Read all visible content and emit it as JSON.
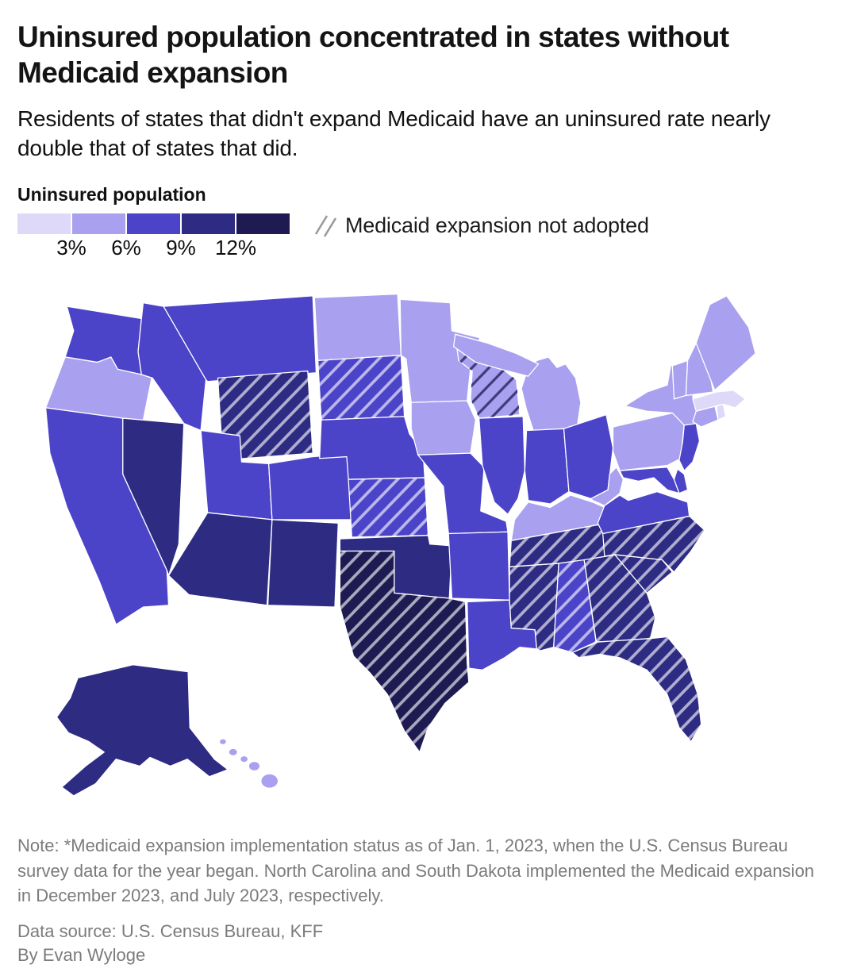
{
  "header": {
    "title": "Uninsured population concentrated in states without Medicaid expansion",
    "subtitle": "Residents of states that didn't expand Medicaid have an uninsured rate nearly double that of states that did."
  },
  "footer": {
    "note": "Note: *Medicaid expansion implementation status as of Jan. 1, 2023, when the U.S. Census Bureau survey data for the year began. North Carolina and South Dakota implemented the Medicaid expansion in December 2023, and July 2023, respectively.",
    "source": "Data source: U.S. Census Bureau, KFF",
    "byline": "By Evan Wyloge"
  },
  "chart_data": {
    "type": "choropleth_map",
    "region": "United States",
    "title": "Uninsured population",
    "legend": {
      "title": "Uninsured population",
      "tick_labels": [
        "3%",
        "6%",
        "9%",
        "12%"
      ],
      "bucket_ranges": [
        "<3%",
        "3-6%",
        "6-9%",
        "9-12%",
        ">12%"
      ],
      "bucket_colors": [
        "#ded9f8",
        "#a9a0ef",
        "#4b43c8",
        "#2d2b82",
        "#1e1b52"
      ],
      "hatch_label": "Medicaid expansion not adopted",
      "hatch_line_light": "rgba(255,255,255,0.62)",
      "hatch_line_dark": "#3f3b7d",
      "border_color": "#ffffff"
    },
    "states": [
      {
        "abbr": "WA",
        "name": "Washington",
        "bucket": 3,
        "range": "6-9%",
        "expansion_not_adopted": false
      },
      {
        "abbr": "OR",
        "name": "Oregon",
        "bucket": 2,
        "range": "3-6%",
        "expansion_not_adopted": false
      },
      {
        "abbr": "CA",
        "name": "California",
        "bucket": 3,
        "range": "6-9%",
        "expansion_not_adopted": false
      },
      {
        "abbr": "NV",
        "name": "Nevada",
        "bucket": 4,
        "range": "9-12%",
        "expansion_not_adopted": false
      },
      {
        "abbr": "ID",
        "name": "Idaho",
        "bucket": 3,
        "range": "6-9%",
        "expansion_not_adopted": false
      },
      {
        "abbr": "MT",
        "name": "Montana",
        "bucket": 3,
        "range": "6-9%",
        "expansion_not_adopted": false
      },
      {
        "abbr": "WY",
        "name": "Wyoming",
        "bucket": 4,
        "range": "9-12%",
        "expansion_not_adopted": true
      },
      {
        "abbr": "UT",
        "name": "Utah",
        "bucket": 3,
        "range": "6-9%",
        "expansion_not_adopted": false
      },
      {
        "abbr": "CO",
        "name": "Colorado",
        "bucket": 3,
        "range": "6-9%",
        "expansion_not_adopted": false
      },
      {
        "abbr": "AZ",
        "name": "Arizona",
        "bucket": 4,
        "range": "9-12%",
        "expansion_not_adopted": false
      },
      {
        "abbr": "NM",
        "name": "New Mexico",
        "bucket": 4,
        "range": "9-12%",
        "expansion_not_adopted": false
      },
      {
        "abbr": "ND",
        "name": "North Dakota",
        "bucket": 2,
        "range": "3-6%",
        "expansion_not_adopted": false
      },
      {
        "abbr": "SD",
        "name": "South Dakota",
        "bucket": 3,
        "range": "6-9%",
        "expansion_not_adopted": true
      },
      {
        "abbr": "NE",
        "name": "Nebraska",
        "bucket": 3,
        "range": "6-9%",
        "expansion_not_adopted": false
      },
      {
        "abbr": "KS",
        "name": "Kansas",
        "bucket": 3,
        "range": "6-9%",
        "expansion_not_adopted": true
      },
      {
        "abbr": "OK",
        "name": "Oklahoma",
        "bucket": 4,
        "range": "9-12%",
        "expansion_not_adopted": false
      },
      {
        "abbr": "TX",
        "name": "Texas",
        "bucket": 5,
        "range": ">12%",
        "expansion_not_adopted": true
      },
      {
        "abbr": "MN",
        "name": "Minnesota",
        "bucket": 2,
        "range": "3-6%",
        "expansion_not_adopted": false
      },
      {
        "abbr": "IA",
        "name": "Iowa",
        "bucket": 2,
        "range": "3-6%",
        "expansion_not_adopted": false
      },
      {
        "abbr": "MO",
        "name": "Missouri",
        "bucket": 3,
        "range": "6-9%",
        "expansion_not_adopted": false
      },
      {
        "abbr": "AR",
        "name": "Arkansas",
        "bucket": 3,
        "range": "6-9%",
        "expansion_not_adopted": false
      },
      {
        "abbr": "LA",
        "name": "Louisiana",
        "bucket": 3,
        "range": "6-9%",
        "expansion_not_adopted": false
      },
      {
        "abbr": "WI",
        "name": "Wisconsin",
        "bucket": 2,
        "range": "3-6%",
        "expansion_not_adopted": true
      },
      {
        "abbr": "IL",
        "name": "Illinois",
        "bucket": 3,
        "range": "6-9%",
        "expansion_not_adopted": false
      },
      {
        "abbr": "MS",
        "name": "Mississippi",
        "bucket": 4,
        "range": "9-12%",
        "expansion_not_adopted": true
      },
      {
        "abbr": "MI",
        "name": "Michigan",
        "bucket": 2,
        "range": "3-6%",
        "expansion_not_adopted": false
      },
      {
        "abbr": "IN",
        "name": "Indiana",
        "bucket": 3,
        "range": "6-9%",
        "expansion_not_adopted": false
      },
      {
        "abbr": "KY",
        "name": "Kentucky",
        "bucket": 2,
        "range": "3-6%",
        "expansion_not_adopted": false
      },
      {
        "abbr": "TN",
        "name": "Tennessee",
        "bucket": 4,
        "range": "9-12%",
        "expansion_not_adopted": true
      },
      {
        "abbr": "AL",
        "name": "Alabama",
        "bucket": 3,
        "range": "6-9%",
        "expansion_not_adopted": true
      },
      {
        "abbr": "OH",
        "name": "Ohio",
        "bucket": 3,
        "range": "6-9%",
        "expansion_not_adopted": false
      },
      {
        "abbr": "GA",
        "name": "Georgia",
        "bucket": 4,
        "range": "9-12%",
        "expansion_not_adopted": true
      },
      {
        "abbr": "FL",
        "name": "Florida",
        "bucket": 4,
        "range": "9-12%",
        "expansion_not_adopted": true
      },
      {
        "abbr": "SC",
        "name": "South Carolina",
        "bucket": 4,
        "range": "9-12%",
        "expansion_not_adopted": true
      },
      {
        "abbr": "NC",
        "name": "North Carolina",
        "bucket": 4,
        "range": "9-12%",
        "expansion_not_adopted": true
      },
      {
        "abbr": "VA",
        "name": "Virginia",
        "bucket": 3,
        "range": "6-9%",
        "expansion_not_adopted": false
      },
      {
        "abbr": "WV",
        "name": "West Virginia",
        "bucket": 2,
        "range": "3-6%",
        "expansion_not_adopted": false
      },
      {
        "abbr": "PA",
        "name": "Pennsylvania",
        "bucket": 2,
        "range": "3-6%",
        "expansion_not_adopted": false
      },
      {
        "abbr": "NY",
        "name": "New York",
        "bucket": 2,
        "range": "3-6%",
        "expansion_not_adopted": false
      },
      {
        "abbr": "NJ",
        "name": "New Jersey",
        "bucket": 3,
        "range": "6-9%",
        "expansion_not_adopted": false
      },
      {
        "abbr": "DE",
        "name": "Delaware",
        "bucket": 3,
        "range": "6-9%",
        "expansion_not_adopted": false
      },
      {
        "abbr": "MD",
        "name": "Maryland",
        "bucket": 3,
        "range": "6-9%",
        "expansion_not_adopted": false
      },
      {
        "abbr": "CT",
        "name": "Connecticut",
        "bucket": 2,
        "range": "3-6%",
        "expansion_not_adopted": false
      },
      {
        "abbr": "RI",
        "name": "Rhode Island",
        "bucket": 1,
        "range": "<3%",
        "expansion_not_adopted": false
      },
      {
        "abbr": "MA",
        "name": "Massachusetts",
        "bucket": 1,
        "range": "<3%",
        "expansion_not_adopted": false
      },
      {
        "abbr": "VT",
        "name": "Vermont",
        "bucket": 2,
        "range": "3-6%",
        "expansion_not_adopted": false
      },
      {
        "abbr": "NH",
        "name": "New Hampshire",
        "bucket": 2,
        "range": "3-6%",
        "expansion_not_adopted": false
      },
      {
        "abbr": "ME",
        "name": "Maine",
        "bucket": 2,
        "range": "3-6%",
        "expansion_not_adopted": false
      },
      {
        "abbr": "AK",
        "name": "Alaska",
        "bucket": 4,
        "range": "9-12%",
        "expansion_not_adopted": false
      },
      {
        "abbr": "HI",
        "name": "Hawaii",
        "bucket": 2,
        "range": "3-6%",
        "expansion_not_adopted": false
      }
    ]
  }
}
